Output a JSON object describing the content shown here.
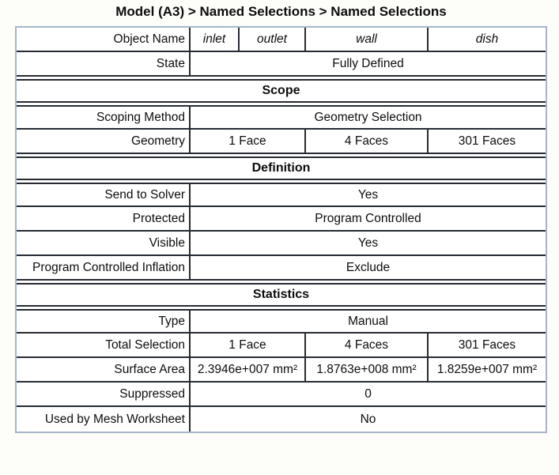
{
  "title": "Model (A3) > Named Selections > Named Selections",
  "colors": {
    "row_border": "#262b33",
    "outer_border": "#a7b6c7",
    "text": "#0d0d0d"
  },
  "table": {
    "header": {
      "label": "Object Name",
      "values": [
        "inlet",
        "outlet",
        "wall",
        "dish"
      ]
    },
    "rows": {
      "state": {
        "label": "State",
        "value": "Fully Defined"
      },
      "scope_section": "Scope",
      "scoping_method": {
        "label": "Scoping Method",
        "value": "Geometry Selection"
      },
      "geometry": {
        "label": "Geometry",
        "values": [
          "1 Face",
          "4 Faces",
          "301 Faces"
        ]
      },
      "definition_section": "Definition",
      "send_to_solver": {
        "label": "Send to Solver",
        "value": "Yes"
      },
      "protected": {
        "label": "Protected",
        "value": "Program Controlled"
      },
      "visible": {
        "label": "Visible",
        "value": "Yes"
      },
      "program_controlled_inflation": {
        "label": "Program Controlled Inflation",
        "value": "Exclude"
      },
      "statistics_section": "Statistics",
      "type": {
        "label": "Type",
        "value": "Manual"
      },
      "total_selection": {
        "label": "Total Selection",
        "values": [
          "1 Face",
          "4 Faces",
          "301 Faces"
        ]
      },
      "surface_area": {
        "label": "Surface Area",
        "values": [
          "2.3946e+007 mm²",
          "1.8763e+008 mm²",
          "1.8259e+007 mm²"
        ]
      },
      "suppressed": {
        "label": "Suppressed",
        "value": "0"
      },
      "used_by_mesh_worksheet": {
        "label": "Used by Mesh Worksheet",
        "value": "No"
      }
    }
  }
}
